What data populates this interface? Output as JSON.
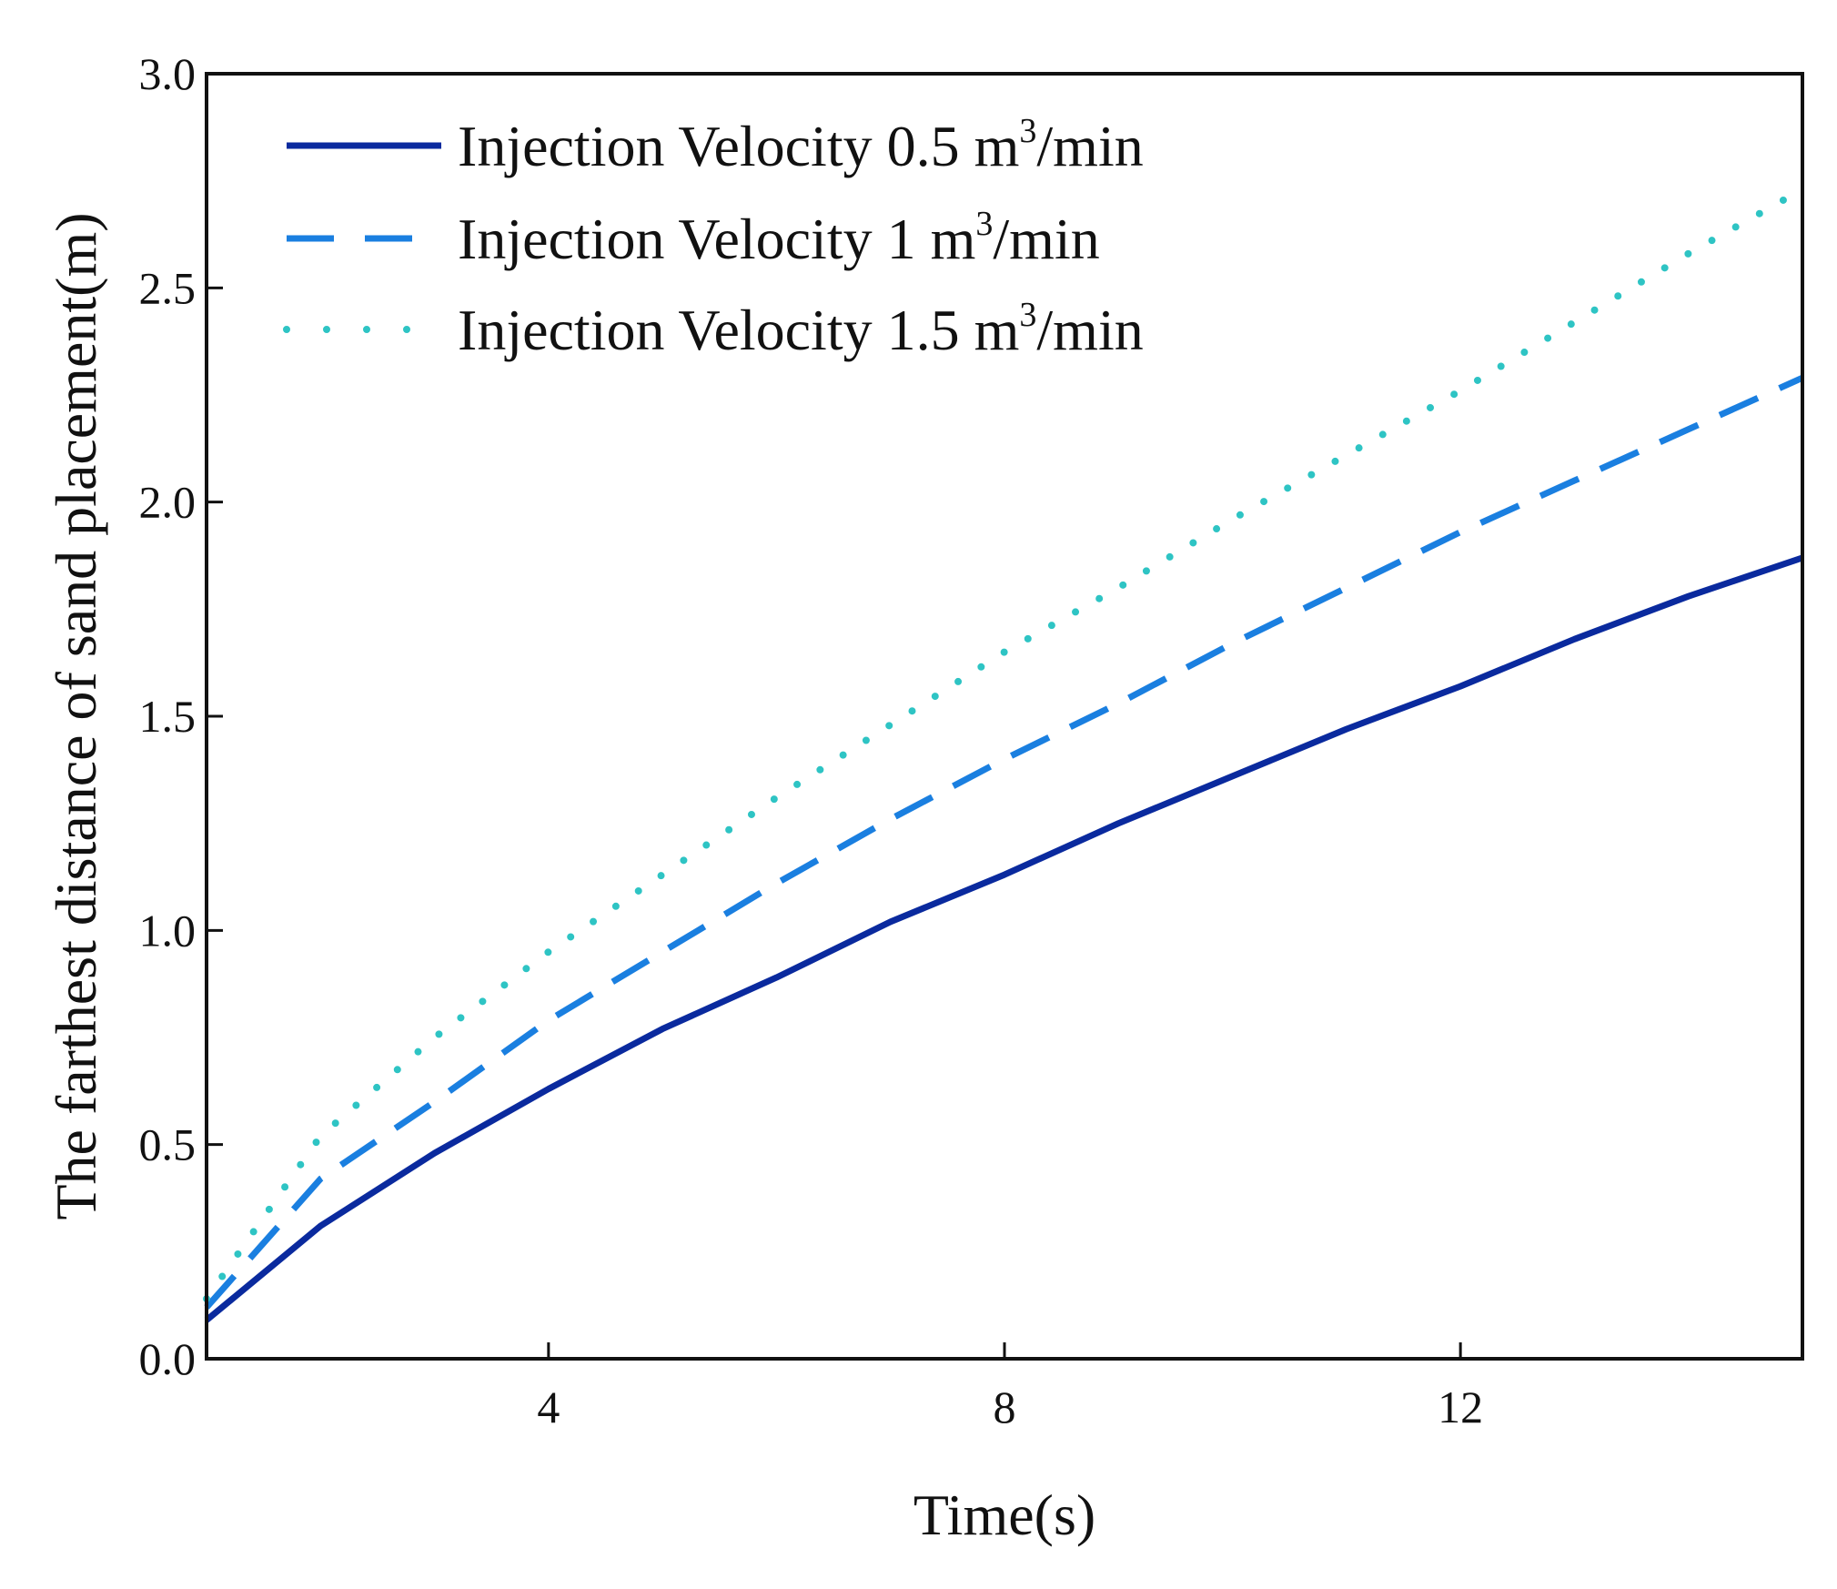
{
  "chart_data": {
    "type": "line",
    "title": "",
    "xlabel": "Time(s)",
    "ylabel": "The farthest distance of sand placement(m)",
    "xlim": [
      1,
      15
    ],
    "ylim": [
      0,
      3.0
    ],
    "x_ticks": [
      4,
      8,
      12
    ],
    "x_tick_labels": [
      "4",
      "8",
      "12"
    ],
    "y_ticks": [
      0,
      0.5,
      1.0,
      1.5,
      2.0,
      2.5,
      3.0
    ],
    "y_tick_labels": [
      "0.0",
      "0.5",
      "1.0",
      "1.5",
      "2.0",
      "2.5",
      "3.0"
    ],
    "grid": false,
    "legend_position": "top-left",
    "x": [
      1,
      2,
      3,
      4,
      5,
      6,
      7,
      8,
      9,
      10,
      11,
      12,
      13,
      14,
      15
    ],
    "series": [
      {
        "name": "Injection Velocity 0.5 m³/min",
        "legend": {
          "prefix": "Injection Velocity 0.5 m",
          "sup": "3",
          "suffix": "/min"
        },
        "style": "solid",
        "color": "#0a2a9e",
        "values": [
          0.09,
          0.31,
          0.48,
          0.63,
          0.77,
          0.89,
          1.02,
          1.13,
          1.25,
          1.36,
          1.47,
          1.57,
          1.68,
          1.78,
          1.87
        ]
      },
      {
        "name": "Injection Velocity 1 m³/min",
        "legend": {
          "prefix": "Injection Velocity 1 m",
          "sup": "3",
          "suffix": "/min"
        },
        "style": "dashed",
        "color": "#1a7fe0",
        "values": [
          0.12,
          0.42,
          0.6,
          0.79,
          0.95,
          1.11,
          1.26,
          1.4,
          1.53,
          1.67,
          1.8,
          1.93,
          2.05,
          2.17,
          2.29
        ]
      },
      {
        "name": "Injection Velocity 1.5 m³/min",
        "legend": {
          "prefix": "Injection Velocity 1.5 m",
          "sup": "3",
          "suffix": "/min"
        },
        "style": "dotted",
        "color": "#2ec4c4",
        "values": [
          0.14,
          0.52,
          0.75,
          0.95,
          1.13,
          1.31,
          1.48,
          1.65,
          1.8,
          1.96,
          2.11,
          2.26,
          2.42,
          2.58,
          2.73
        ]
      }
    ]
  }
}
